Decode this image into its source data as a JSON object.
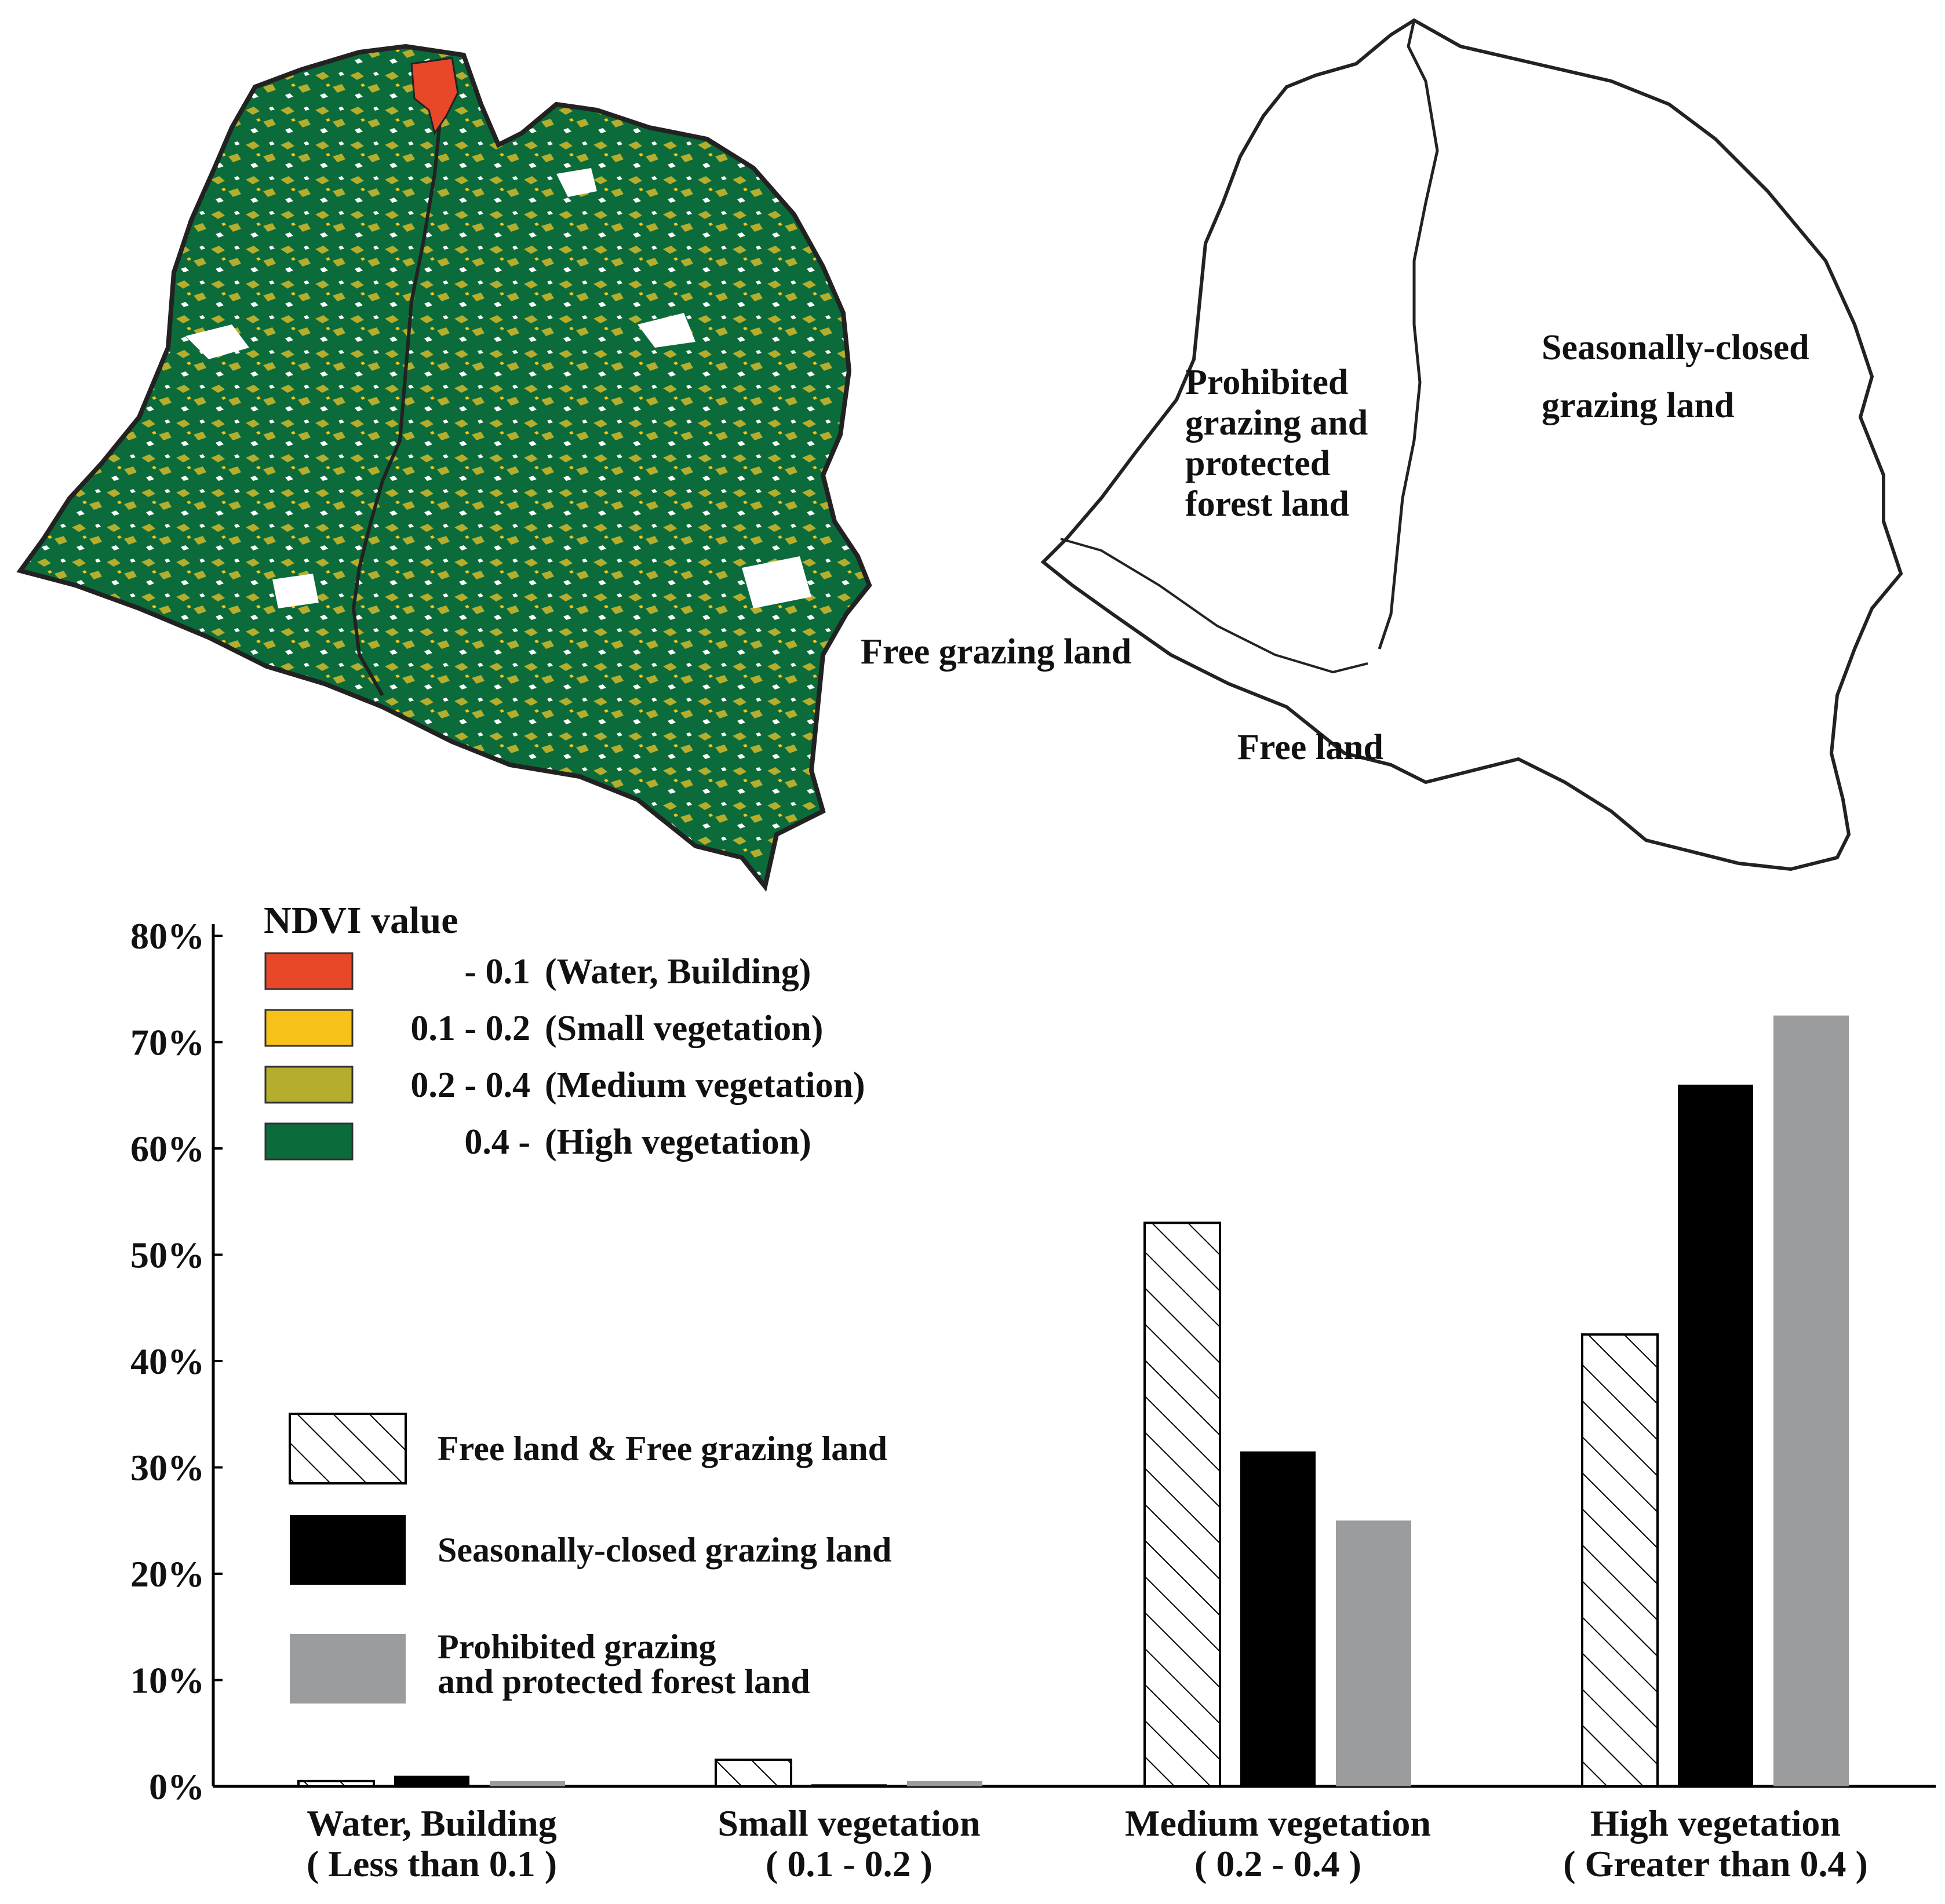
{
  "map_left": {
    "legend": {
      "title": "NDVI value",
      "items": [
        {
          "range": "- 0.1",
          "label": "(Water, Building)",
          "color": "#e8472a"
        },
        {
          "range": "0.1 - 0.2",
          "label": "(Small vegetation)",
          "color": "#f6c21a"
        },
        {
          "range": "0.2 - 0.4",
          "label": "(Medium vegetation)",
          "color": "#b4ad2e"
        },
        {
          "range": "0.4 -",
          "label": "(High vegetation)",
          "color": "#0b6b3a"
        }
      ]
    }
  },
  "map_right": {
    "labels": {
      "prohibited": [
        "Prohibited",
        "grazing and",
        "protected",
        "forest land"
      ],
      "seasonal": [
        "Seasonally-closed",
        "grazing land"
      ],
      "free_grazing": "Free grazing land",
      "free_land": "Free land"
    }
  },
  "chart_data": {
    "type": "bar",
    "title": "",
    "xlabel": "",
    "ylabel": "",
    "ylim": [
      0,
      80
    ],
    "y_ticks": [
      "0%",
      "10%",
      "20%",
      "30%",
      "40%",
      "50%",
      "60%",
      "70%",
      "80%"
    ],
    "categories": [
      [
        "Water, Building",
        "( Less than 0.1 )"
      ],
      [
        "Small vegetation",
        "( 0.1 - 0.2 )"
      ],
      [
        "Medium vegetation",
        "( 0.2  -  0.4 )"
      ],
      [
        "High vegetation",
        "( Greater than 0.4 )"
      ]
    ],
    "series": [
      {
        "name": "Free land & Free grazing land",
        "style": "hatched",
        "color": "#ffffff",
        "values": [
          0.5,
          2.5,
          53,
          42.5
        ]
      },
      {
        "name": "Seasonally-closed grazing land",
        "style": "solid",
        "color": "#000000",
        "values": [
          1.0,
          0.2,
          31.5,
          66
        ]
      },
      {
        "name": "Prohibited grazing and protected forest land",
        "legend_lines": [
          "Prohibited grazing",
          "and protected forest land"
        ],
        "style": "solid",
        "color": "#9b9c9e",
        "values": [
          0.5,
          0.5,
          25,
          72.5
        ]
      }
    ],
    "grid": false,
    "legend_position": "center-left"
  }
}
